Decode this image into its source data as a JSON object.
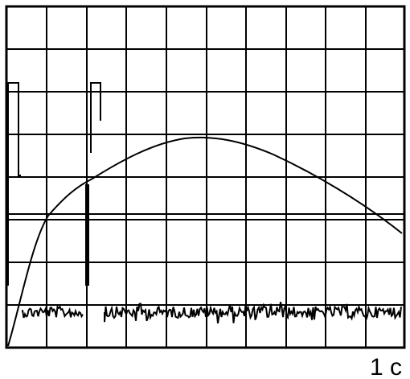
{
  "scale_label": "1 c"
}
